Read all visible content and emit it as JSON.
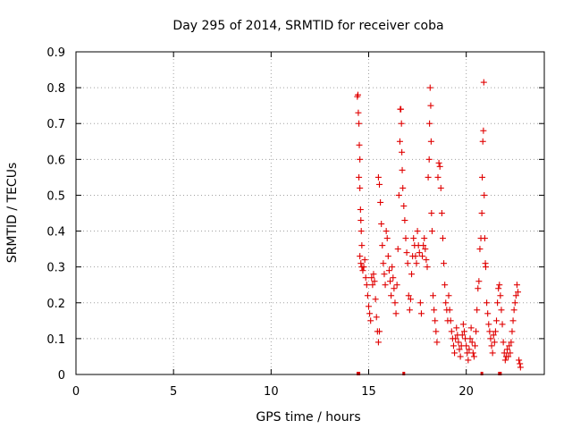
{
  "chart_data": {
    "type": "scatter",
    "title": "Day 295 of 2014, SRMTID for receiver coba",
    "xlabel": "GPS time / hours",
    "ylabel": "SRMTID / TECUs",
    "xlim": [
      0,
      24
    ],
    "ylim": [
      0,
      0.9
    ],
    "xticks": [
      0,
      5,
      10,
      15,
      20
    ],
    "yticks": [
      0,
      0.1,
      0.2,
      0.3,
      0.4,
      0.5,
      0.6,
      0.7,
      0.8,
      0.9
    ],
    "grid": true,
    "marker": "+",
    "color": "#e00000",
    "zero_markers_x": [
      14.45,
      14.5,
      16.8,
      20.8,
      21.7,
      21.75
    ],
    "series": [
      {
        "values": [
          [
            14.42,
            0.775
          ],
          [
            14.45,
            0.78
          ],
          [
            14.47,
            0.73
          ],
          [
            14.5,
            0.7
          ],
          [
            14.52,
            0.64
          ],
          [
            14.55,
            0.6
          ],
          [
            14.5,
            0.55
          ],
          [
            14.55,
            0.52
          ],
          [
            14.58,
            0.46
          ],
          [
            14.6,
            0.43
          ],
          [
            14.62,
            0.4
          ],
          [
            14.65,
            0.36
          ],
          [
            14.55,
            0.33
          ],
          [
            14.6,
            0.31
          ],
          [
            14.65,
            0.3
          ],
          [
            14.7,
            0.29
          ],
          [
            14.75,
            0.3
          ],
          [
            14.8,
            0.32
          ],
          [
            14.85,
            0.27
          ],
          [
            14.9,
            0.25
          ],
          [
            14.95,
            0.22
          ],
          [
            15.0,
            0.19
          ],
          [
            15.05,
            0.17
          ],
          [
            15.1,
            0.15
          ],
          [
            15.15,
            0.27
          ],
          [
            15.2,
            0.25
          ],
          [
            15.25,
            0.28
          ],
          [
            15.3,
            0.26
          ],
          [
            15.35,
            0.21
          ],
          [
            15.4,
            0.16
          ],
          [
            15.45,
            0.12
          ],
          [
            15.5,
            0.09
          ],
          [
            15.55,
            0.12
          ],
          [
            15.5,
            0.55
          ],
          [
            15.55,
            0.53
          ],
          [
            15.6,
            0.48
          ],
          [
            15.65,
            0.42
          ],
          [
            15.7,
            0.36
          ],
          [
            15.75,
            0.31
          ],
          [
            15.8,
            0.28
          ],
          [
            15.85,
            0.25
          ],
          [
            15.9,
            0.4
          ],
          [
            15.95,
            0.38
          ],
          [
            16.0,
            0.33
          ],
          [
            16.05,
            0.29
          ],
          [
            16.1,
            0.26
          ],
          [
            16.15,
            0.22
          ],
          [
            16.2,
            0.3
          ],
          [
            16.25,
            0.27
          ],
          [
            16.3,
            0.24
          ],
          [
            16.35,
            0.2
          ],
          [
            16.4,
            0.17
          ],
          [
            16.45,
            0.25
          ],
          [
            16.5,
            0.35
          ],
          [
            16.55,
            0.5
          ],
          [
            16.6,
            0.65
          ],
          [
            16.62,
            0.74
          ],
          [
            16.65,
            0.74
          ],
          [
            16.68,
            0.7
          ],
          [
            16.7,
            0.62
          ],
          [
            16.72,
            0.57
          ],
          [
            16.75,
            0.52
          ],
          [
            16.8,
            0.47
          ],
          [
            16.85,
            0.43
          ],
          [
            16.9,
            0.38
          ],
          [
            16.95,
            0.34
          ],
          [
            17.0,
            0.31
          ],
          [
            17.05,
            0.22
          ],
          [
            17.1,
            0.18
          ],
          [
            17.15,
            0.21
          ],
          [
            17.2,
            0.28
          ],
          [
            17.25,
            0.33
          ],
          [
            17.3,
            0.38
          ],
          [
            17.35,
            0.36
          ],
          [
            17.4,
            0.33
          ],
          [
            17.45,
            0.31
          ],
          [
            17.5,
            0.4
          ],
          [
            17.55,
            0.36
          ],
          [
            17.6,
            0.34
          ],
          [
            17.65,
            0.2
          ],
          [
            17.7,
            0.17
          ],
          [
            17.75,
            0.33
          ],
          [
            17.8,
            0.36
          ],
          [
            17.85,
            0.38
          ],
          [
            17.9,
            0.35
          ],
          [
            17.95,
            0.32
          ],
          [
            18.0,
            0.3
          ],
          [
            18.05,
            0.55
          ],
          [
            18.1,
            0.6
          ],
          [
            18.12,
            0.7
          ],
          [
            18.15,
            0.8
          ],
          [
            18.18,
            0.75
          ],
          [
            18.2,
            0.65
          ],
          [
            18.22,
            0.45
          ],
          [
            18.25,
            0.4
          ],
          [
            18.3,
            0.22
          ],
          [
            18.35,
            0.18
          ],
          [
            18.4,
            0.15
          ],
          [
            18.45,
            0.12
          ],
          [
            18.5,
            0.09
          ],
          [
            18.55,
            0.55
          ],
          [
            18.6,
            0.59
          ],
          [
            18.65,
            0.58
          ],
          [
            18.7,
            0.52
          ],
          [
            18.75,
            0.45
          ],
          [
            18.8,
            0.38
          ],
          [
            18.85,
            0.31
          ],
          [
            18.9,
            0.25
          ],
          [
            18.95,
            0.2
          ],
          [
            19.0,
            0.18
          ],
          [
            19.05,
            0.15
          ],
          [
            19.1,
            0.22
          ],
          [
            19.15,
            0.18
          ],
          [
            19.2,
            0.15
          ],
          [
            19.25,
            0.12
          ],
          [
            19.3,
            0.1
          ],
          [
            19.35,
            0.08
          ],
          [
            19.4,
            0.06
          ],
          [
            19.45,
            0.1
          ],
          [
            19.5,
            0.13
          ],
          [
            19.55,
            0.11
          ],
          [
            19.6,
            0.09
          ],
          [
            19.65,
            0.07
          ],
          [
            19.7,
            0.05
          ],
          [
            19.75,
            0.08
          ],
          [
            19.8,
            0.11
          ],
          [
            19.85,
            0.14
          ],
          [
            19.9,
            0.12
          ],
          [
            19.95,
            0.1
          ],
          [
            20.0,
            0.08
          ],
          [
            20.05,
            0.06
          ],
          [
            20.1,
            0.04
          ],
          [
            20.15,
            0.07
          ],
          [
            20.2,
            0.1
          ],
          [
            20.25,
            0.13
          ],
          [
            20.3,
            0.09
          ],
          [
            20.35,
            0.06
          ],
          [
            20.4,
            0.05
          ],
          [
            20.45,
            0.08
          ],
          [
            20.5,
            0.12
          ],
          [
            20.55,
            0.18
          ],
          [
            20.6,
            0.24
          ],
          [
            20.65,
            0.26
          ],
          [
            20.7,
            0.35
          ],
          [
            20.75,
            0.38
          ],
          [
            20.8,
            0.45
          ],
          [
            20.82,
            0.55
          ],
          [
            20.85,
            0.65
          ],
          [
            20.88,
            0.68
          ],
          [
            20.9,
            0.815
          ],
          [
            20.92,
            0.5
          ],
          [
            20.95,
            0.38
          ],
          [
            20.98,
            0.31
          ],
          [
            21.0,
            0.3
          ],
          [
            21.05,
            0.2
          ],
          [
            21.1,
            0.17
          ],
          [
            21.15,
            0.14
          ],
          [
            21.2,
            0.12
          ],
          [
            21.25,
            0.1
          ],
          [
            21.3,
            0.08
          ],
          [
            21.35,
            0.06
          ],
          [
            21.4,
            0.11
          ],
          [
            21.45,
            0.09
          ],
          [
            21.5,
            0.12
          ],
          [
            21.55,
            0.15
          ],
          [
            21.6,
            0.2
          ],
          [
            21.65,
            0.24
          ],
          [
            21.7,
            0.25
          ],
          [
            21.75,
            0.22
          ],
          [
            21.8,
            0.18
          ],
          [
            21.85,
            0.14
          ],
          [
            21.9,
            0.09
          ],
          [
            21.95,
            0.06
          ],
          [
            22.0,
            0.04
          ],
          [
            22.05,
            0.05
          ],
          [
            22.1,
            0.07
          ],
          [
            22.15,
            0.05
          ],
          [
            22.2,
            0.08
          ],
          [
            22.25,
            0.06
          ],
          [
            22.3,
            0.09
          ],
          [
            22.35,
            0.12
          ],
          [
            22.4,
            0.15
          ],
          [
            22.45,
            0.18
          ],
          [
            22.5,
            0.2
          ],
          [
            22.55,
            0.22
          ],
          [
            22.6,
            0.25
          ],
          [
            22.65,
            0.23
          ],
          [
            22.7,
            0.04
          ],
          [
            22.75,
            0.03
          ],
          [
            22.78,
            0.02
          ]
        ]
      }
    ]
  }
}
